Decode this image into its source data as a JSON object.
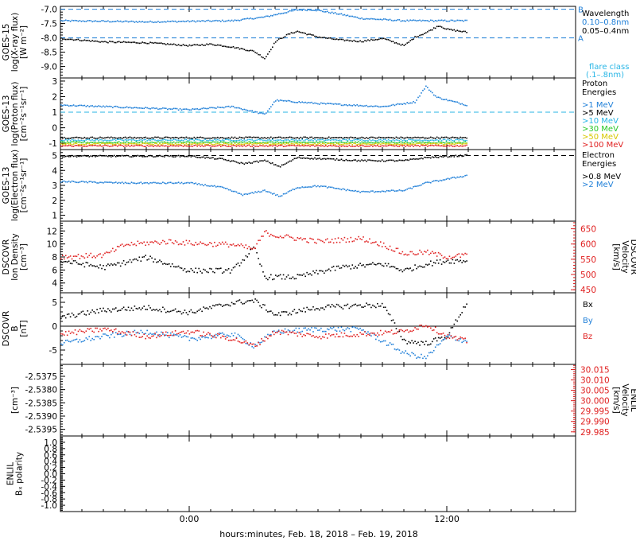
{
  "colors": {
    "black": "#000000",
    "blue": "#1f7fd8",
    "cyan": "#29b6e6",
    "red": "#e02020",
    "green": "#28c828",
    "yellow": "#d8c800",
    "orange": "#f07800",
    "dark_red": "#c81818"
  },
  "xaxis": {
    "label": "hours:minutes, Feb. 18, 2018 – Feb. 19, 2018",
    "range_hours": [
      -6,
      18
    ],
    "data_end_hours": 12.9,
    "ticks": [
      {
        "value": 0,
        "label": "0:00"
      },
      {
        "value": 12,
        "label": "12:00"
      }
    ],
    "minor_step": 1
  },
  "chart_data": [
    {
      "id": "xray",
      "type": "scatter",
      "ylabel": [
        "GOES-15",
        "log(X-ray flux)",
        "[W m⁻²]"
      ],
      "ylim": [
        -9.4,
        -6.9
      ],
      "yticks": [
        "-7.0",
        "-7.5",
        "-8.0",
        "-8.5",
        "-9.0"
      ],
      "ytick_values": [
        -7.0,
        -7.5,
        -8.0,
        -8.5,
        -9.0
      ],
      "legend_title": "Wavelength",
      "series": [
        {
          "name": "0.10–0.8nm",
          "color_key": "blue",
          "points": [
            [
              -6,
              -7.38
            ],
            [
              -4,
              -7.4
            ],
            [
              -2,
              -7.42
            ],
            [
              0,
              -7.4
            ],
            [
              2,
              -7.38
            ],
            [
              3.5,
              -7.25
            ],
            [
              5,
              -7.0
            ],
            [
              5.8,
              -7.0
            ],
            [
              7,
              -7.15
            ],
            [
              8,
              -7.3
            ],
            [
              10,
              -7.38
            ],
            [
              12,
              -7.38
            ],
            [
              12.9,
              -7.38
            ]
          ]
        },
        {
          "name": "0.05–0.4nm",
          "color_key": "black",
          "points": [
            [
              -6,
              -8.0
            ],
            [
              -4,
              -8.12
            ],
            [
              -2,
              -8.15
            ],
            [
              0,
              -8.25
            ],
            [
              1,
              -8.2
            ],
            [
              2,
              -8.3
            ],
            [
              3,
              -8.45
            ],
            [
              3.5,
              -8.7
            ],
            [
              4,
              -8.1
            ],
            [
              4.6,
              -7.85
            ],
            [
              5,
              -7.75
            ],
            [
              6,
              -7.95
            ],
            [
              7,
              -8.05
            ],
            [
              8,
              -8.1
            ],
            [
              9,
              -8.0
            ],
            [
              10,
              -8.25
            ],
            [
              10.5,
              -7.95
            ],
            [
              11,
              -7.8
            ],
            [
              11.6,
              -7.55
            ],
            [
              12,
              -7.68
            ],
            [
              12.9,
              -7.78
            ]
          ]
        }
      ],
      "ref_lines": [
        {
          "label": "B",
          "value": -7.0
        },
        {
          "label": "A",
          "value": -8.0
        }
      ],
      "note": [
        "flare class",
        "(.1–.8nm)"
      ]
    },
    {
      "id": "proton",
      "type": "scatter",
      "ylabel": [
        "GOES-13",
        "log(Proton flux)",
        "[cm⁻²s⁻¹sr⁻¹]"
      ],
      "ylim": [
        -1.4,
        3.2
      ],
      "yticks": [
        "3",
        "2",
        "1",
        "0",
        "-1"
      ],
      "ytick_values": [
        3,
        2,
        1,
        0,
        -1
      ],
      "legend_title": [
        "Proton",
        "Energies"
      ],
      "threshold": 1,
      "series": [
        {
          "name": ">1 MeV",
          "color_key": "blue",
          "points": [
            [
              -6,
              1.5
            ],
            [
              -2,
              1.3
            ],
            [
              0,
              1.2
            ],
            [
              2,
              1.4
            ],
            [
              3.5,
              0.9
            ],
            [
              4,
              1.8
            ],
            [
              6,
              1.6
            ],
            [
              9,
              1.4
            ],
            [
              10.5,
              1.7
            ],
            [
              11,
              2.7
            ],
            [
              11.5,
              2.0
            ],
            [
              12.9,
              1.5
            ]
          ]
        },
        {
          "name": ">5 MeV",
          "color_key": "black",
          "points": [
            [
              -6,
              -0.6
            ],
            [
              12.9,
              -0.6
            ]
          ]
        },
        {
          "name": ">10 MeV",
          "color_key": "cyan",
          "points": [
            [
              -6,
              -0.75
            ],
            [
              12.9,
              -0.75
            ]
          ]
        },
        {
          "name": ">30 MeV",
          "color_key": "green",
          "points": [
            [
              -6,
              -0.9
            ],
            [
              12.9,
              -0.9
            ]
          ]
        },
        {
          "name": ">50 MeV",
          "color_key": "yellow",
          "points": [
            [
              -6,
              -1.0
            ],
            [
              12.9,
              -1.0
            ]
          ]
        },
        {
          "name": ">100 MeV",
          "color_key": "red",
          "points": [
            [
              -6,
              -1.12
            ],
            [
              12.9,
              -1.12
            ]
          ]
        }
      ]
    },
    {
      "id": "electron",
      "type": "scatter",
      "ylabel": [
        "GOES-13",
        "log(Electron flux)",
        "[cm⁻²s⁻¹sr⁻¹]"
      ],
      "ylim": [
        0.6,
        5.4
      ],
      "yticks": [
        "5",
        "4",
        "3",
        "2",
        "1"
      ],
      "ytick_values": [
        5,
        4,
        3,
        2,
        1
      ],
      "legend_title": [
        "Electron",
        "Energies"
      ],
      "threshold": 5,
      "series": [
        {
          "name": ">0.8 MeV",
          "color_key": "black",
          "points": [
            [
              -6,
              5.0
            ],
            [
              0,
              5.0
            ],
            [
              1.5,
              4.8
            ],
            [
              2.5,
              4.5
            ],
            [
              3.5,
              4.7
            ],
            [
              4.2,
              4.3
            ],
            [
              5,
              4.9
            ],
            [
              8,
              4.7
            ],
            [
              10,
              4.7
            ],
            [
              11,
              4.9
            ],
            [
              12.9,
              5.05
            ]
          ]
        },
        {
          "name": ">2 MeV",
          "color_key": "blue",
          "points": [
            [
              -6,
              3.3
            ],
            [
              -3,
              3.2
            ],
            [
              0,
              3.2
            ],
            [
              1.5,
              2.9
            ],
            [
              2.5,
              2.4
            ],
            [
              3.5,
              2.7
            ],
            [
              4.2,
              2.3
            ],
            [
              5,
              2.9
            ],
            [
              6,
              3.0
            ],
            [
              8,
              2.6
            ],
            [
              10,
              2.7
            ],
            [
              11,
              3.2
            ],
            [
              12.9,
              3.7
            ]
          ]
        }
      ]
    },
    {
      "id": "dscovr_plasma",
      "type": "scatter",
      "ylabel": [
        "DSCOVR",
        "Ion Density",
        "[cm⁻³]"
      ],
      "ylim": [
        2.5,
        13.5
      ],
      "yticks": [
        "12",
        "10",
        "8",
        "6",
        "4"
      ],
      "ytick_values": [
        12,
        10,
        8,
        6,
        4
      ],
      "ylabel_right": [
        "DSCOVR",
        "Velocity",
        "[km/s]"
      ],
      "ylim_right": [
        440,
        675
      ],
      "yticks_right": [
        "650",
        "600",
        "550",
        "500",
        "450"
      ],
      "ytick_values_right": [
        650,
        600,
        550,
        500,
        450
      ],
      "series": [
        {
          "name": "Density",
          "color_key": "black",
          "axis": "left",
          "points": [
            [
              -6,
              7.5
            ],
            [
              -4,
              6.5
            ],
            [
              -2,
              8.0
            ],
            [
              0,
              6.0
            ],
            [
              2,
              6.0
            ],
            [
              3,
              9.5
            ],
            [
              3.5,
              5.0
            ],
            [
              5,
              5.0
            ],
            [
              7,
              6.5
            ],
            [
              9,
              7.0
            ],
            [
              10,
              6.0
            ],
            [
              11,
              7.0
            ],
            [
              12,
              7.5
            ],
            [
              12.9,
              7.5
            ]
          ]
        },
        {
          "name": "Velocity",
          "color_key": "red",
          "axis": "right",
          "points": [
            [
              -6,
              560
            ],
            [
              -4,
              565
            ],
            [
              -3,
              600
            ],
            [
              -1,
              610
            ],
            [
              0,
              605
            ],
            [
              2,
              600
            ],
            [
              3,
              585
            ],
            [
              3.5,
              640
            ],
            [
              4,
              630
            ],
            [
              6,
              610
            ],
            [
              8,
              620
            ],
            [
              9,
              600
            ],
            [
              10,
              570
            ],
            [
              11,
              575
            ],
            [
              12,
              560
            ],
            [
              12.9,
              565
            ]
          ]
        }
      ]
    },
    {
      "id": "dscovr_mag",
      "type": "scatter",
      "ylabel": [
        "DSCOVR",
        "B",
        "[nT]"
      ],
      "ylim": [
        -8,
        7
      ],
      "yticks": [
        "5",
        "0",
        "-5"
      ],
      "ytick_values": [
        5,
        0,
        -5
      ],
      "series": [
        {
          "name": "Bx",
          "color_key": "black",
          "points": [
            [
              -6,
              2.0
            ],
            [
              -4,
              3.5
            ],
            [
              -2,
              4.0
            ],
            [
              0,
              3.0
            ],
            [
              2,
              5.0
            ],
            [
              3,
              5.5
            ],
            [
              4,
              2.5
            ],
            [
              6,
              4.0
            ],
            [
              8,
              4.5
            ],
            [
              9,
              4.5
            ],
            [
              10,
              -3.0
            ],
            [
              11,
              -3.5
            ],
            [
              12,
              -2.0
            ],
            [
              12.9,
              5.0
            ]
          ]
        },
        {
          "name": "By",
          "color_key": "blue",
          "points": [
            [
              -6,
              -3.5
            ],
            [
              -4,
              -2.0
            ],
            [
              -2,
              -1.0
            ],
            [
              0,
              -2.5
            ],
            [
              2,
              -1.5
            ],
            [
              3,
              -4.0
            ],
            [
              4,
              -1.0
            ],
            [
              6,
              -0.5
            ],
            [
              8,
              -0.5
            ],
            [
              10,
              -5.5
            ],
            [
              11,
              -6.5
            ],
            [
              12,
              -2.0
            ],
            [
              12.9,
              -3.0
            ]
          ]
        },
        {
          "name": "Bz",
          "color_key": "red",
          "points": [
            [
              -6,
              -1.5
            ],
            [
              -4,
              -0.5
            ],
            [
              -2,
              -2.0
            ],
            [
              0,
              -1.0
            ],
            [
              2,
              -2.5
            ],
            [
              3,
              -4.0
            ],
            [
              4,
              -1.0
            ],
            [
              6,
              -2.0
            ],
            [
              8,
              -1.5
            ],
            [
              10,
              -1.0
            ],
            [
              11,
              0.5
            ],
            [
              12,
              -2.0
            ],
            [
              12.9,
              -3.0
            ]
          ]
        }
      ],
      "legend": [
        "Bx",
        "By",
        "Bz"
      ],
      "legend_colors": [
        "black",
        "blue",
        "red"
      ]
    },
    {
      "id": "enlil_plasma",
      "type": "scatter",
      "ylabel": [
        "[cm⁻³]"
      ],
      "ylim": [
        -2.53975,
        -2.53705
      ],
      "yticks": [
        "-2.5375",
        "-2.5380",
        "-2.5385",
        "-2.5390",
        "-2.5395"
      ],
      "ytick_values": [
        -2.5375,
        -2.538,
        -2.5385,
        -2.539,
        -2.5395
      ],
      "ylabel_right": [
        "ENLIL",
        "Velocity",
        "[km/s]"
      ],
      "ylim_right": [
        29.983,
        30.0175
      ],
      "yticks_right": [
        "30.015",
        "30.010",
        "30.005",
        "30.000",
        "29.995",
        "29.990",
        "29.985"
      ],
      "ytick_values_right": [
        30.015,
        30.01,
        30.005,
        30.0,
        29.995,
        29.99,
        29.985
      ],
      "series": []
    },
    {
      "id": "enlil_polarity",
      "type": "scatter",
      "ylabel": [
        "ENLIL",
        "Bₓ polarity"
      ],
      "ylim": [
        -1.2,
        1.2
      ],
      "yticks": [
        "1.0",
        "0.8",
        "0.6",
        "0.4",
        "0.2",
        "0.0",
        "-0.2",
        "-0.4",
        "-0.6",
        "-0.8",
        "-1.0"
      ],
      "ytick_values": [
        1.0,
        0.8,
        0.6,
        0.4,
        0.2,
        0.0,
        -0.2,
        -0.4,
        -0.6,
        -0.8,
        -1.0
      ],
      "series": []
    }
  ]
}
